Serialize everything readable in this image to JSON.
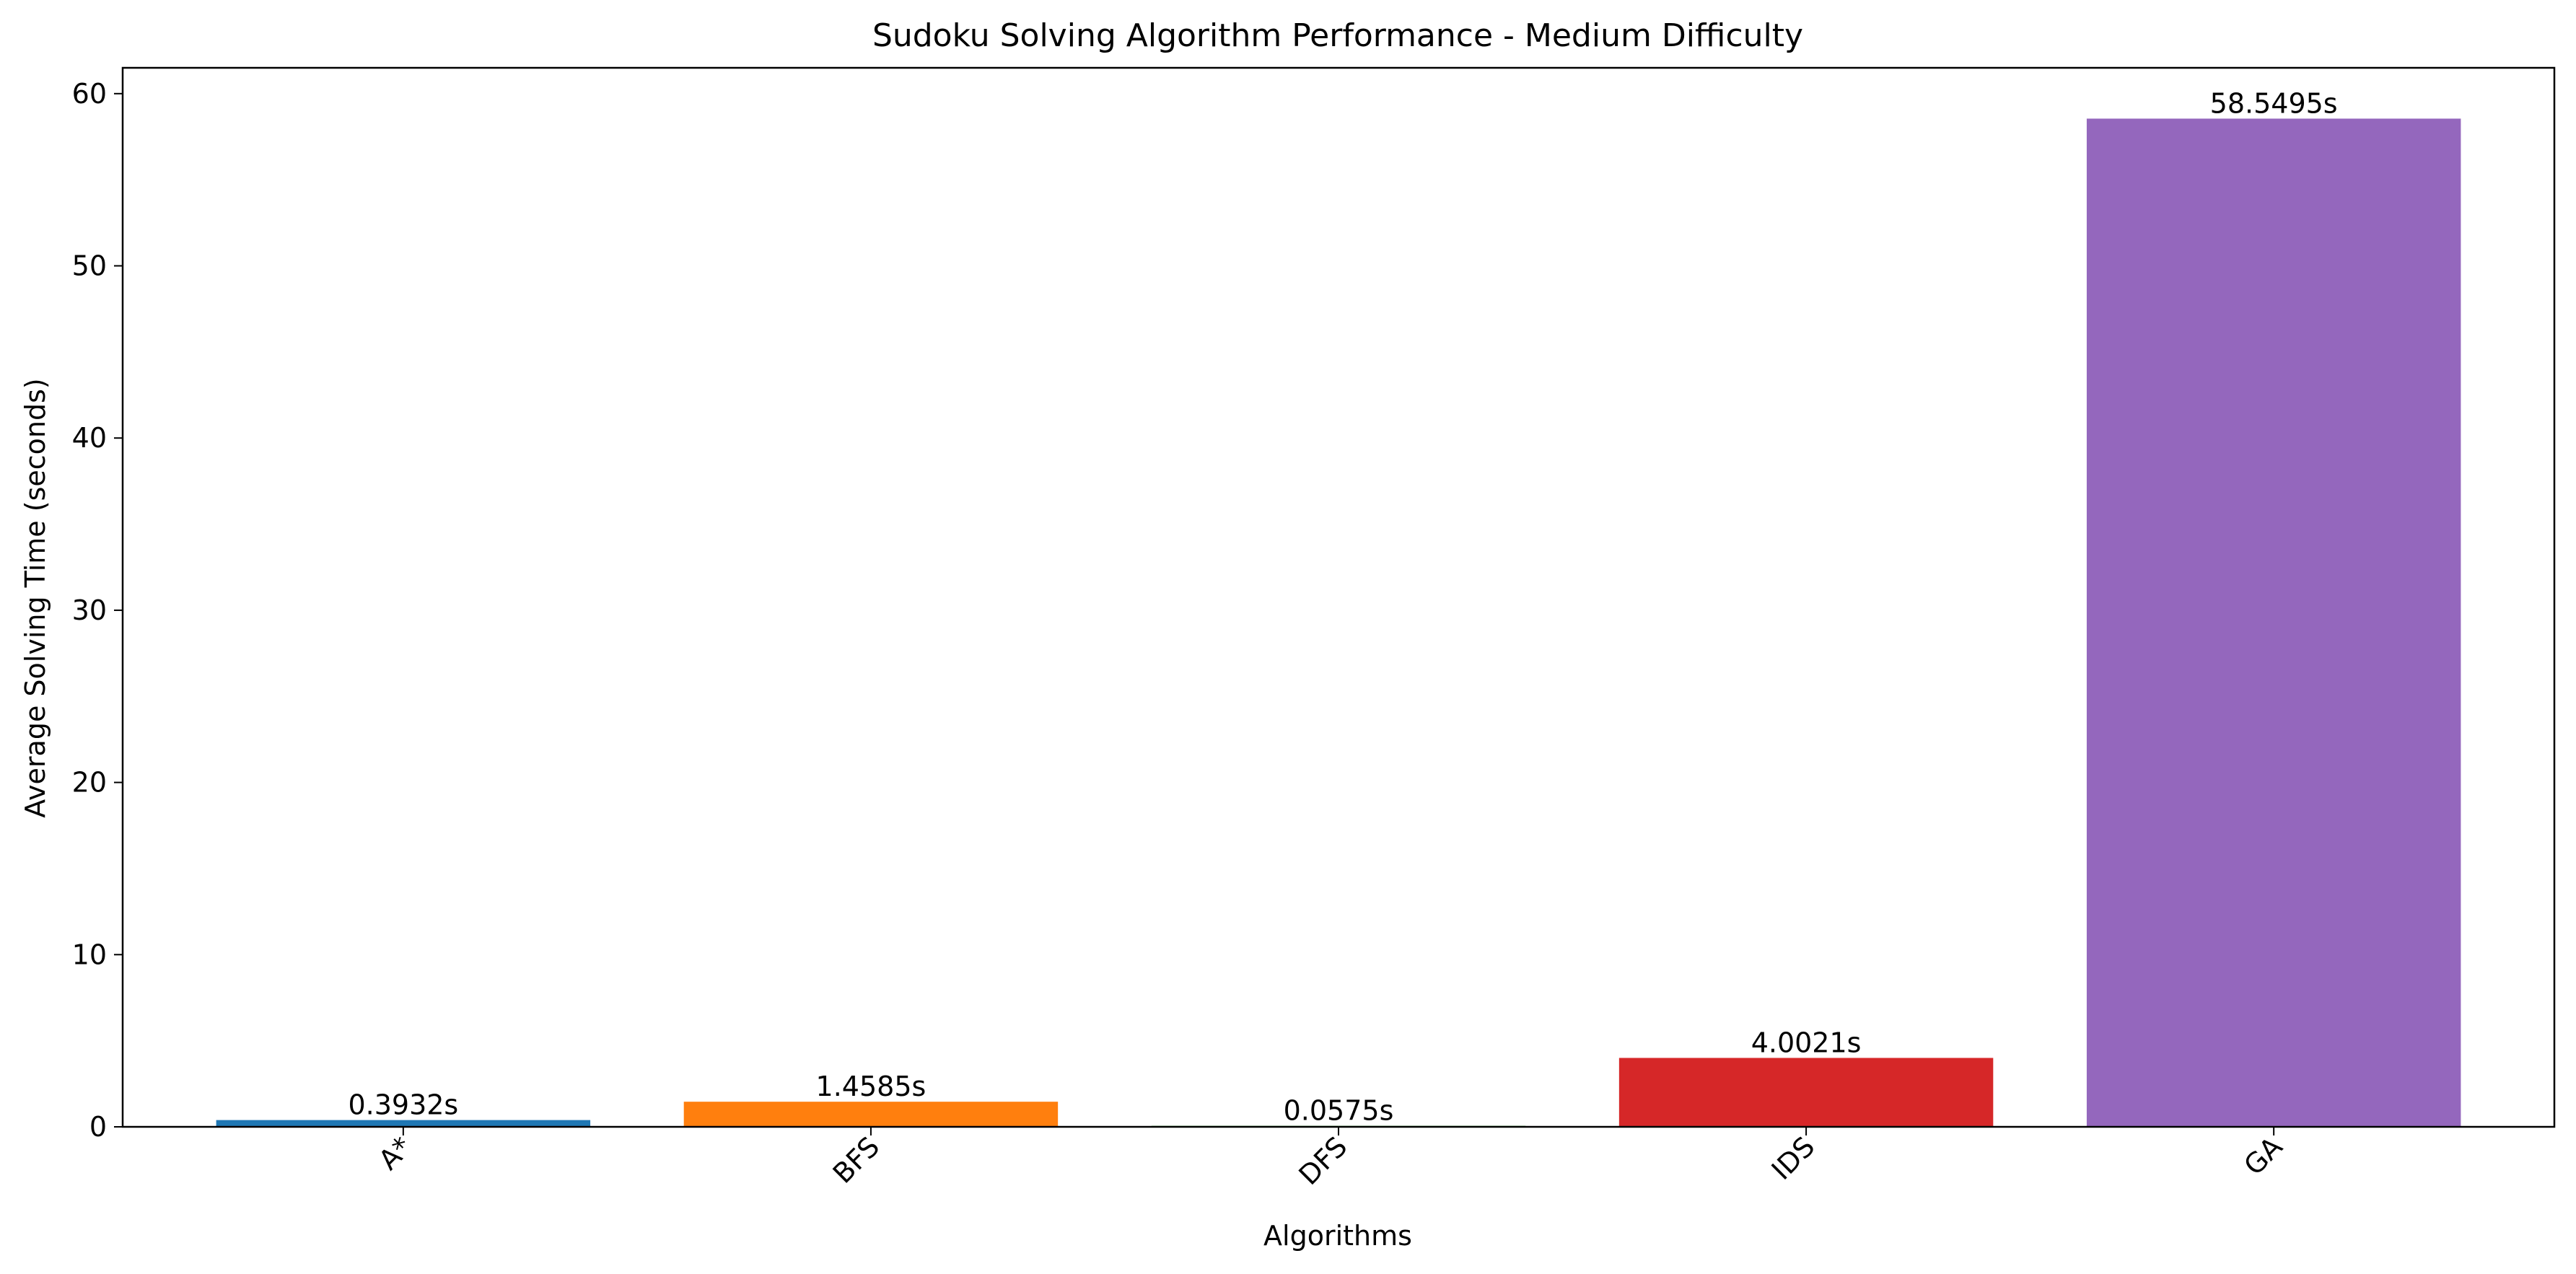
{
  "chart_data": {
    "type": "bar",
    "title": "Sudoku Solving Algorithm Performance - Medium Difficulty",
    "xlabel": "Algorithms",
    "ylabel": "Average Solving Time (seconds)",
    "categories": [
      "A*",
      "BFS",
      "DFS",
      "IDS",
      "GA"
    ],
    "values": [
      0.3932,
      1.4585,
      0.0575,
      4.0021,
      58.5495
    ],
    "data_labels": [
      "0.3932s",
      "1.4585s",
      "0.0575s",
      "4.0021s",
      "58.5495s"
    ],
    "colors": [
      "#1f77b4",
      "#ff7f0e",
      "#2ca02c",
      "#d62728",
      "#9467bd"
    ],
    "ylim": [
      0,
      61.5
    ],
    "yticks": [
      0,
      10,
      20,
      30,
      40,
      50,
      60
    ],
    "ytick_labels": [
      "0",
      "10",
      "20",
      "30",
      "40",
      "50",
      "60"
    ],
    "xtick_rotation_deg": 45,
    "grid": false,
    "legend": "none"
  }
}
